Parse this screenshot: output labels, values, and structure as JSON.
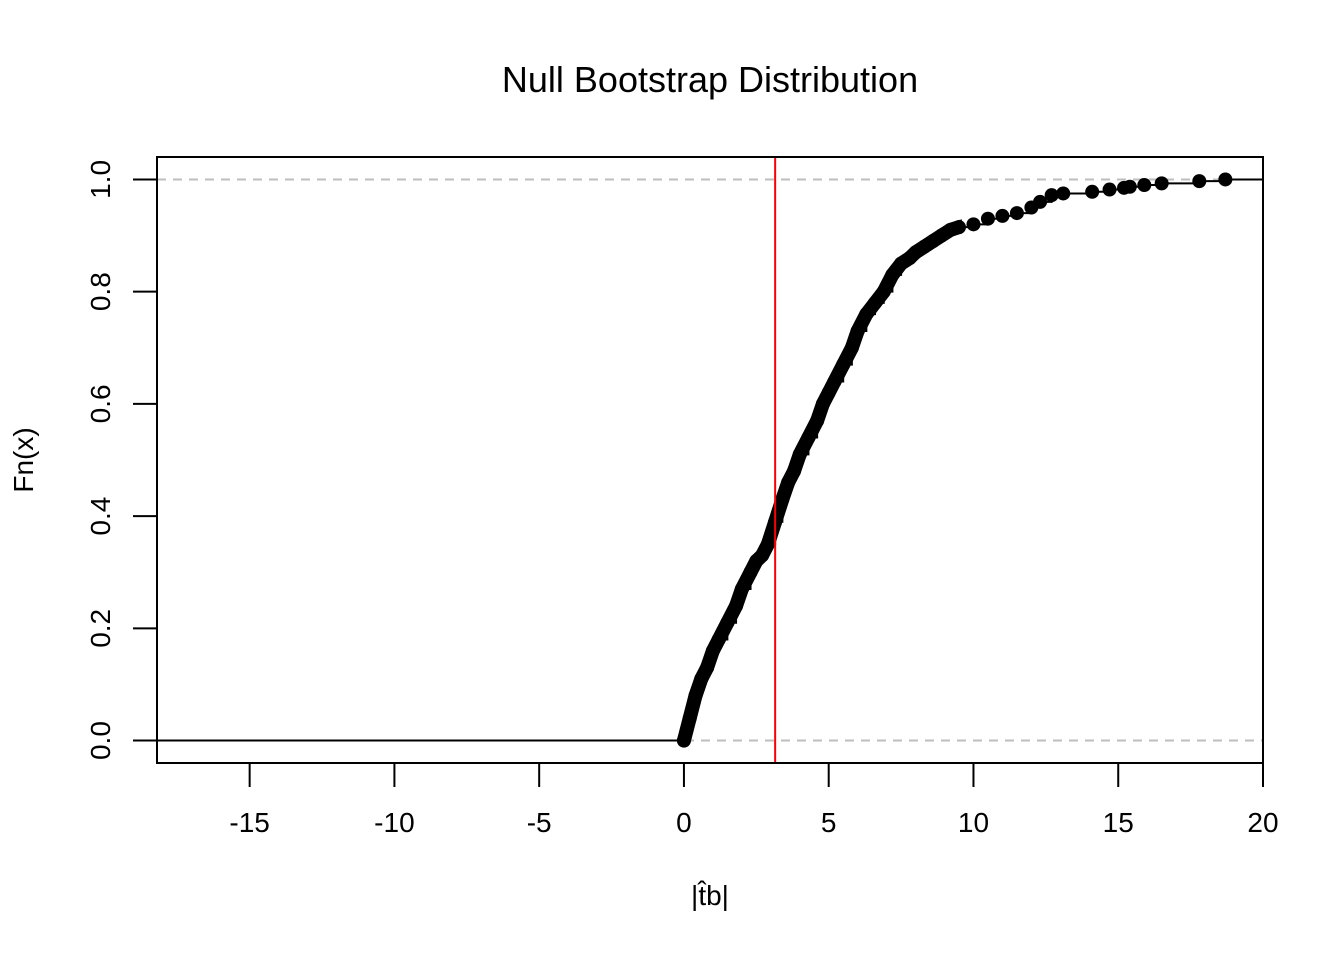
{
  "chart_data": {
    "type": "line",
    "title": "Null Bootstrap Distribution",
    "xlabel": "|t̂b|",
    "ylabel": "Fn(x)",
    "xlim": [
      -18.2,
      20.0
    ],
    "ylim": [
      -0.04,
      1.04
    ],
    "x_ticks": [
      -15,
      -10,
      -5,
      0,
      5,
      10,
      15,
      20
    ],
    "x_tick_labels": [
      "-15",
      "-10",
      "-5",
      "0",
      "5",
      "10",
      "15",
      "20"
    ],
    "y_ticks": [
      0.0,
      0.2,
      0.4,
      0.6,
      0.8,
      1.0
    ],
    "y_tick_labels": [
      "0.0",
      "0.2",
      "0.4",
      "0.6",
      "0.8",
      "1.0"
    ],
    "reference_lines": {
      "horizontal": [
        0,
        1
      ],
      "horizontal_color": "#bebebe",
      "vertical": 3.15,
      "vertical_color": "#ff0000"
    },
    "series": [
      {
        "color": "#000000",
        "x": [
          0.0,
          0.2,
          0.4,
          0.6,
          0.8,
          1.0,
          1.2,
          1.5,
          1.8,
          2.0,
          2.3,
          2.5,
          2.7,
          2.9,
          3.15,
          3.4,
          3.6,
          3.8,
          4.0,
          4.3,
          4.6,
          4.8,
          5.0,
          5.2,
          5.5,
          5.8,
          6.0,
          6.3,
          6.6,
          6.9,
          7.2,
          7.5,
          7.8,
          8.0,
          8.3,
          8.6,
          8.9,
          9.2,
          9.5,
          10.0,
          10.5,
          11.0,
          11.5,
          12.0,
          12.3,
          12.7,
          13.1,
          14.1,
          14.7,
          15.2,
          15.4,
          15.9,
          16.5,
          17.8,
          18.7
        ],
        "y": [
          0.0,
          0.04,
          0.08,
          0.11,
          0.13,
          0.16,
          0.18,
          0.21,
          0.24,
          0.27,
          0.3,
          0.32,
          0.33,
          0.35,
          0.39,
          0.43,
          0.46,
          0.48,
          0.51,
          0.54,
          0.57,
          0.6,
          0.62,
          0.64,
          0.67,
          0.7,
          0.73,
          0.76,
          0.78,
          0.8,
          0.83,
          0.85,
          0.86,
          0.87,
          0.88,
          0.89,
          0.9,
          0.91,
          0.915,
          0.92,
          0.93,
          0.935,
          0.94,
          0.95,
          0.96,
          0.972,
          0.975,
          0.978,
          0.982,
          0.985,
          0.987,
          0.99,
          0.993,
          0.997,
          1.0
        ]
      }
    ]
  }
}
